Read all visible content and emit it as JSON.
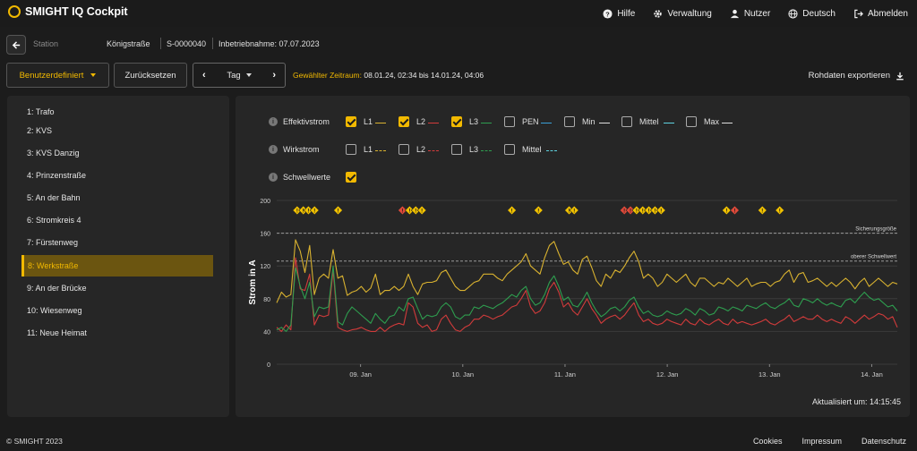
{
  "app": {
    "title": "SMIGHT IQ Cockpit"
  },
  "topnav": [
    {
      "label": "Hilfe",
      "icon": "help-icon"
    },
    {
      "label": "Verwaltung",
      "icon": "gear-icon"
    },
    {
      "label": "Nutzer",
      "icon": "user-icon"
    },
    {
      "label": "Deutsch",
      "icon": "globe-icon"
    },
    {
      "label": "Abmelden",
      "icon": "logout-icon"
    }
  ],
  "station": {
    "label": "Station",
    "name": "Königstraße",
    "id": "S-0000040",
    "commissioning": "Inbetriebnahme: 07.07.2023"
  },
  "toolbar": {
    "range_mode": "Benutzerdefiniert",
    "reset": "Zurücksetzen",
    "day": "Tag",
    "range_label": "Gewählter Zeitraum:",
    "range_value": "08.01.24, 02:34 bis 14.01.24, 04:06",
    "export": "Rohdaten exportieren"
  },
  "sidebar": {
    "items": [
      "1: Trafo",
      "2: KVS",
      "3: KVS Danzig",
      "4: Prinzenstraße",
      "5: An der Bahn",
      "6: Stromkreis 4",
      "7: Fürstenweg",
      "8: Werkstraße",
      "9: An der Brücke",
      "10: Wiesenweg",
      "11: Neue Heimat"
    ],
    "active_index": 7
  },
  "filters": {
    "effektiv": {
      "label": "Effektivstrom",
      "options": [
        {
          "label": "L1",
          "checked": true,
          "color": "#d9b230"
        },
        {
          "label": "L2",
          "checked": true,
          "color": "#d23b3b"
        },
        {
          "label": "L3",
          "checked": true,
          "color": "#2e9e4f"
        },
        {
          "label": "PEN",
          "checked": false,
          "color": "#3aa0d8"
        },
        {
          "label": "Min",
          "checked": false,
          "color": "#dddddd"
        },
        {
          "label": "Mittel",
          "checked": false,
          "color": "#5fd3e0"
        },
        {
          "label": "Max",
          "checked": false,
          "color": "#dddddd"
        }
      ]
    },
    "wirk": {
      "label": "Wirkstrom",
      "options": [
        {
          "label": "L1",
          "checked": false,
          "color": "#d9b230"
        },
        {
          "label": "L2",
          "checked": false,
          "color": "#d23b3b"
        },
        {
          "label": "L3",
          "checked": false,
          "color": "#2e9e4f"
        },
        {
          "label": "Mittel",
          "checked": false,
          "color": "#5fd3e0"
        }
      ]
    },
    "schwell": {
      "label": "Schwellwerte",
      "checked": true
    }
  },
  "chart_data": {
    "type": "line",
    "ylabel": "Strom in A",
    "ylim": [
      0,
      200
    ],
    "yticks": [
      0,
      40,
      80,
      120,
      160,
      200
    ],
    "xlim": [
      0,
      6.07
    ],
    "xticks": [
      {
        "v": 0.82,
        "label": "09. Jan"
      },
      {
        "v": 1.82,
        "label": "10. Jan"
      },
      {
        "v": 2.82,
        "label": "11. Jan"
      },
      {
        "v": 3.82,
        "label": "12. Jan"
      },
      {
        "v": 4.82,
        "label": "13. Jan"
      },
      {
        "v": 5.82,
        "label": "14. Jan"
      }
    ],
    "thresholds": [
      {
        "value": 160,
        "label": "Sicherungsgröße"
      },
      {
        "value": 126,
        "label": "oberer Schwellwert"
      }
    ],
    "series": [
      {
        "name": "L1",
        "color": "#d9b230",
        "values": [
          75,
          88,
          82,
          85,
          152,
          138,
          112,
          145,
          85,
          105,
          110,
          105,
          140,
          105,
          108,
          84,
          88,
          90,
          95,
          88,
          93,
          110,
          85,
          90,
          90,
          95,
          90,
          95,
          110,
          95,
          85,
          98,
          100,
          100,
          102,
          112,
          115,
          105,
          95,
          90,
          90,
          95,
          100,
          102,
          110,
          110,
          110,
          105,
          102,
          110,
          115,
          120,
          125,
          135,
          120,
          115,
          110,
          130,
          145,
          150,
          135,
          122,
          125,
          115,
          110,
          128,
          132,
          118,
          102,
          95,
          110,
          105,
          115,
          112,
          120,
          130,
          138,
          125,
          105,
          110,
          105,
          95,
          100,
          110,
          105,
          100,
          105,
          110,
          100,
          95,
          105,
          105,
          100,
          95,
          100,
          98,
          105,
          100,
          95,
          100,
          105,
          95,
          98,
          100,
          100,
          95,
          100,
          102,
          110,
          115,
          100,
          110,
          112,
          100,
          102,
          105,
          100,
          95,
          100,
          95,
          100,
          105,
          100,
          92,
          100,
          105,
          95,
          100,
          105,
          100,
          95,
          100,
          98
        ]
      },
      {
        "name": "L2",
        "color": "#d23b3b",
        "values": [
          45,
          40,
          48,
          42,
          130,
          92,
          90,
          110,
          48,
          60,
          58,
          60,
          115,
          45,
          42,
          40,
          42,
          43,
          45,
          42,
          40,
          40,
          45,
          40,
          45,
          48,
          50,
          48,
          75,
          70,
          50,
          45,
          48,
          40,
          42,
          55,
          60,
          50,
          42,
          40,
          45,
          48,
          55,
          55,
          60,
          58,
          55,
          58,
          60,
          65,
          70,
          72,
          80,
          90,
          70,
          62,
          65,
          75,
          92,
          100,
          88,
          70,
          75,
          65,
          60,
          70,
          80,
          68,
          60,
          50,
          55,
          58,
          60,
          55,
          60,
          68,
          75,
          60,
          52,
          55,
          50,
          48,
          50,
          55,
          52,
          50,
          48,
          55,
          50,
          48,
          55,
          50,
          48,
          52,
          55,
          50,
          48,
          55,
          50,
          52,
          50,
          48,
          50,
          52,
          55,
          50,
          48,
          52,
          55,
          60,
          52,
          55,
          58,
          55,
          55,
          60,
          55,
          52,
          55,
          52,
          50,
          58,
          55,
          50,
          55,
          60,
          55,
          58,
          62,
          60,
          55,
          58,
          45
        ]
      },
      {
        "name": "L3",
        "color": "#2e9e4f",
        "values": [
          42,
          45,
          40,
          48,
          118,
          95,
          80,
          100,
          58,
          70,
          68,
          70,
          120,
          52,
          48,
          62,
          70,
          65,
          60,
          55,
          50,
          62,
          55,
          50,
          58,
          60,
          70,
          65,
          80,
          82,
          68,
          55,
          60,
          58,
          60,
          70,
          75,
          70,
          58,
          55,
          60,
          60,
          70,
          68,
          72,
          70,
          68,
          72,
          75,
          80,
          85,
          82,
          90,
          95,
          80,
          72,
          75,
          85,
          100,
          108,
          95,
          78,
          82,
          72,
          70,
          78,
          88,
          75,
          65,
          58,
          62,
          68,
          70,
          65,
          70,
          78,
          82,
          70,
          62,
          65,
          60,
          58,
          60,
          65,
          62,
          60,
          62,
          68,
          65,
          60,
          68,
          65,
          60,
          62,
          70,
          68,
          65,
          70,
          68,
          65,
          72,
          70,
          68,
          72,
          75,
          70,
          68,
          72,
          75,
          80,
          72,
          70,
          80,
          78,
          75,
          80,
          75,
          72,
          75,
          72,
          70,
          78,
          80,
          75,
          82,
          88,
          82,
          78,
          80,
          75,
          70,
          72,
          65
        ]
      }
    ],
    "events": [
      {
        "x": 0.2,
        "kind": "warn"
      },
      {
        "x": 0.26,
        "kind": "warn"
      },
      {
        "x": 0.31,
        "kind": "warn"
      },
      {
        "x": 0.37,
        "kind": "warn"
      },
      {
        "x": 0.6,
        "kind": "warn"
      },
      {
        "x": 1.23,
        "kind": "alert"
      },
      {
        "x": 1.3,
        "kind": "warn"
      },
      {
        "x": 1.36,
        "kind": "warn"
      },
      {
        "x": 1.42,
        "kind": "warn"
      },
      {
        "x": 2.3,
        "kind": "warn"
      },
      {
        "x": 2.56,
        "kind": "warn"
      },
      {
        "x": 2.86,
        "kind": "warn"
      },
      {
        "x": 2.91,
        "kind": "warn"
      },
      {
        "x": 3.4,
        "kind": "alert"
      },
      {
        "x": 3.46,
        "kind": "alert"
      },
      {
        "x": 3.52,
        "kind": "warn"
      },
      {
        "x": 3.58,
        "kind": "warn"
      },
      {
        "x": 3.64,
        "kind": "warn"
      },
      {
        "x": 3.7,
        "kind": "warn"
      },
      {
        "x": 3.76,
        "kind": "warn"
      },
      {
        "x": 4.4,
        "kind": "warn"
      },
      {
        "x": 4.48,
        "kind": "alert"
      },
      {
        "x": 4.75,
        "kind": "warn"
      },
      {
        "x": 4.92,
        "kind": "warn"
      }
    ],
    "grid": true
  },
  "updated": "Aktualisiert um: 14:15:45",
  "footer": {
    "copyright": "© SMIGHT 2023",
    "links": [
      "Cookies",
      "Impressum",
      "Datenschutz"
    ]
  }
}
